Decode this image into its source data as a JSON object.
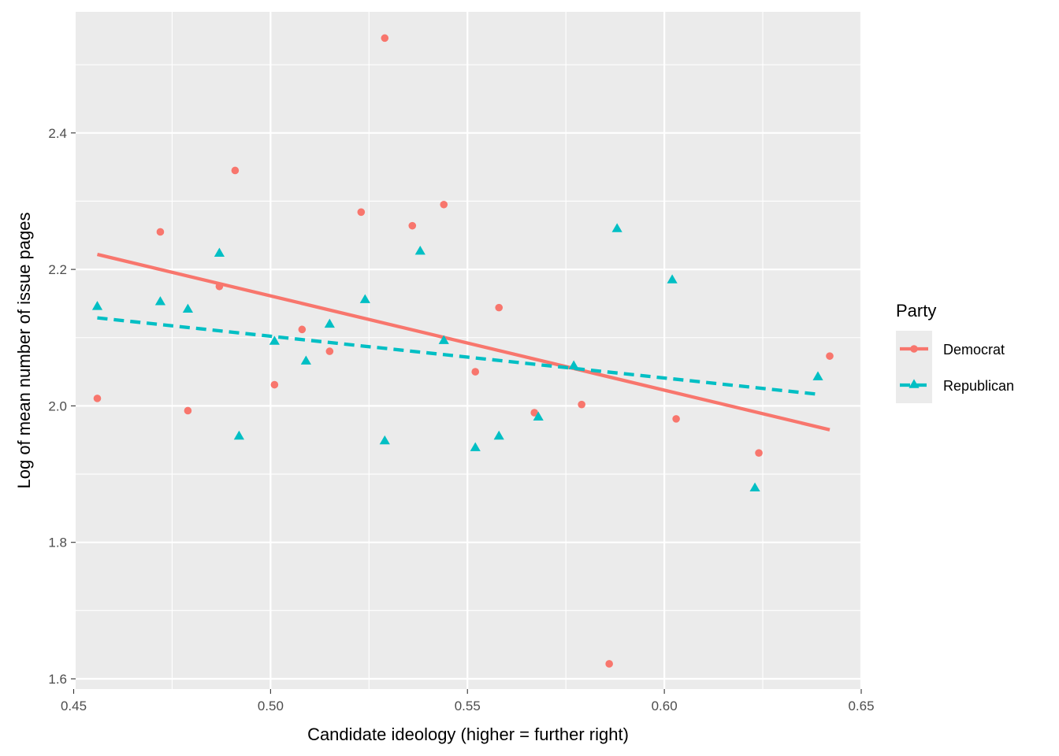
{
  "chart_data": {
    "type": "scatter",
    "title": "",
    "xlabel": "Candidate ideology (higher = further right)",
    "ylabel": "Log of mean number of issue pages",
    "xlim": [
      0.4505,
      0.65
    ],
    "ylim": [
      1.585,
      2.5775
    ],
    "x_ticks": [
      0.45,
      0.5,
      0.55,
      0.6,
      0.65
    ],
    "x_tick_labels": [
      "0.45",
      "0.50",
      "0.55",
      "0.60",
      "0.65"
    ],
    "y_ticks": [
      1.6,
      1.8,
      2.0,
      2.2,
      2.4
    ],
    "y_tick_labels": [
      "1.6",
      "1.8",
      "2.0",
      "2.2",
      "2.4"
    ],
    "grid": true,
    "legend": {
      "title": "Party",
      "position": "right"
    },
    "series": [
      {
        "name": "Democrat",
        "color": "#F8766D",
        "marker": "circle",
        "trend_line": "solid",
        "points": [
          [
            0.456,
            2.011
          ],
          [
            0.472,
            2.255
          ],
          [
            0.479,
            1.993
          ],
          [
            0.487,
            2.175
          ],
          [
            0.491,
            2.345
          ],
          [
            0.501,
            2.031
          ],
          [
            0.508,
            2.112
          ],
          [
            0.515,
            2.08
          ],
          [
            0.523,
            2.284
          ],
          [
            0.529,
            2.539
          ],
          [
            0.536,
            2.264
          ],
          [
            0.544,
            2.295
          ],
          [
            0.552,
            2.05
          ],
          [
            0.558,
            2.144
          ],
          [
            0.567,
            1.99
          ],
          [
            0.579,
            2.002
          ],
          [
            0.586,
            1.622
          ],
          [
            0.603,
            1.981
          ],
          [
            0.624,
            1.931
          ],
          [
            0.642,
            2.073
          ]
        ],
        "fit": {
          "x": [
            0.456,
            0.642
          ],
          "y": [
            2.222,
            1.965
          ]
        }
      },
      {
        "name": "Republican",
        "color": "#00BFC4",
        "marker": "triangle",
        "trend_line": "dashed",
        "points": [
          [
            0.456,
            2.145
          ],
          [
            0.472,
            2.152
          ],
          [
            0.479,
            2.141
          ],
          [
            0.487,
            2.223
          ],
          [
            0.492,
            1.955
          ],
          [
            0.501,
            2.094
          ],
          [
            0.509,
            2.065
          ],
          [
            0.515,
            2.119
          ],
          [
            0.524,
            2.155
          ],
          [
            0.529,
            1.948
          ],
          [
            0.538,
            2.226
          ],
          [
            0.544,
            2.095
          ],
          [
            0.552,
            1.938
          ],
          [
            0.558,
            1.955
          ],
          [
            0.568,
            1.983
          ],
          [
            0.577,
            2.058
          ],
          [
            0.588,
            2.259
          ],
          [
            0.602,
            2.184
          ],
          [
            0.623,
            1.879
          ],
          [
            0.639,
            2.042
          ]
        ],
        "fit": {
          "x": [
            0.456,
            0.639
          ],
          "y": [
            2.129,
            2.017
          ]
        }
      }
    ]
  }
}
